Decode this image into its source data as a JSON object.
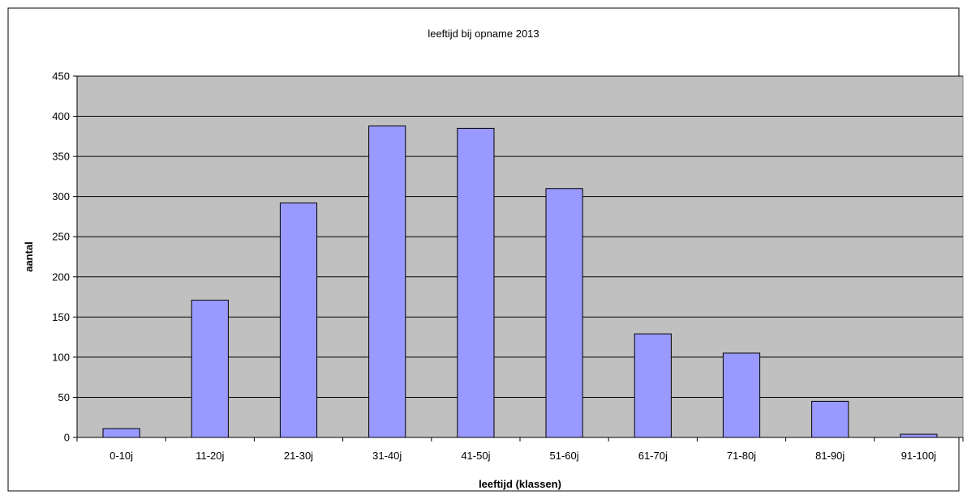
{
  "chart_data": {
    "type": "bar",
    "title": "leeftijd bij opname 2013",
    "xlabel": "leeftijd (klassen)",
    "ylabel": "aantal",
    "categories": [
      "0-10j",
      "11-20j",
      "21-30j",
      "31-40j",
      "41-50j",
      "51-60j",
      "61-70j",
      "71-80j",
      "81-90j",
      "91-100j"
    ],
    "values": [
      11,
      171,
      292,
      388,
      385,
      310,
      129,
      105,
      45,
      4
    ],
    "ylim": [
      0,
      450
    ],
    "yticks": [
      "0",
      "50",
      "100",
      "150",
      "200",
      "250",
      "300",
      "350",
      "400",
      "450"
    ],
    "grid": true,
    "legend": "none",
    "colors": {
      "bar_fill": "#9999ff",
      "bar_stroke": "#000000",
      "plot_background": "#c0c0c0",
      "gridline": "#000000",
      "frame": "#000000"
    }
  }
}
